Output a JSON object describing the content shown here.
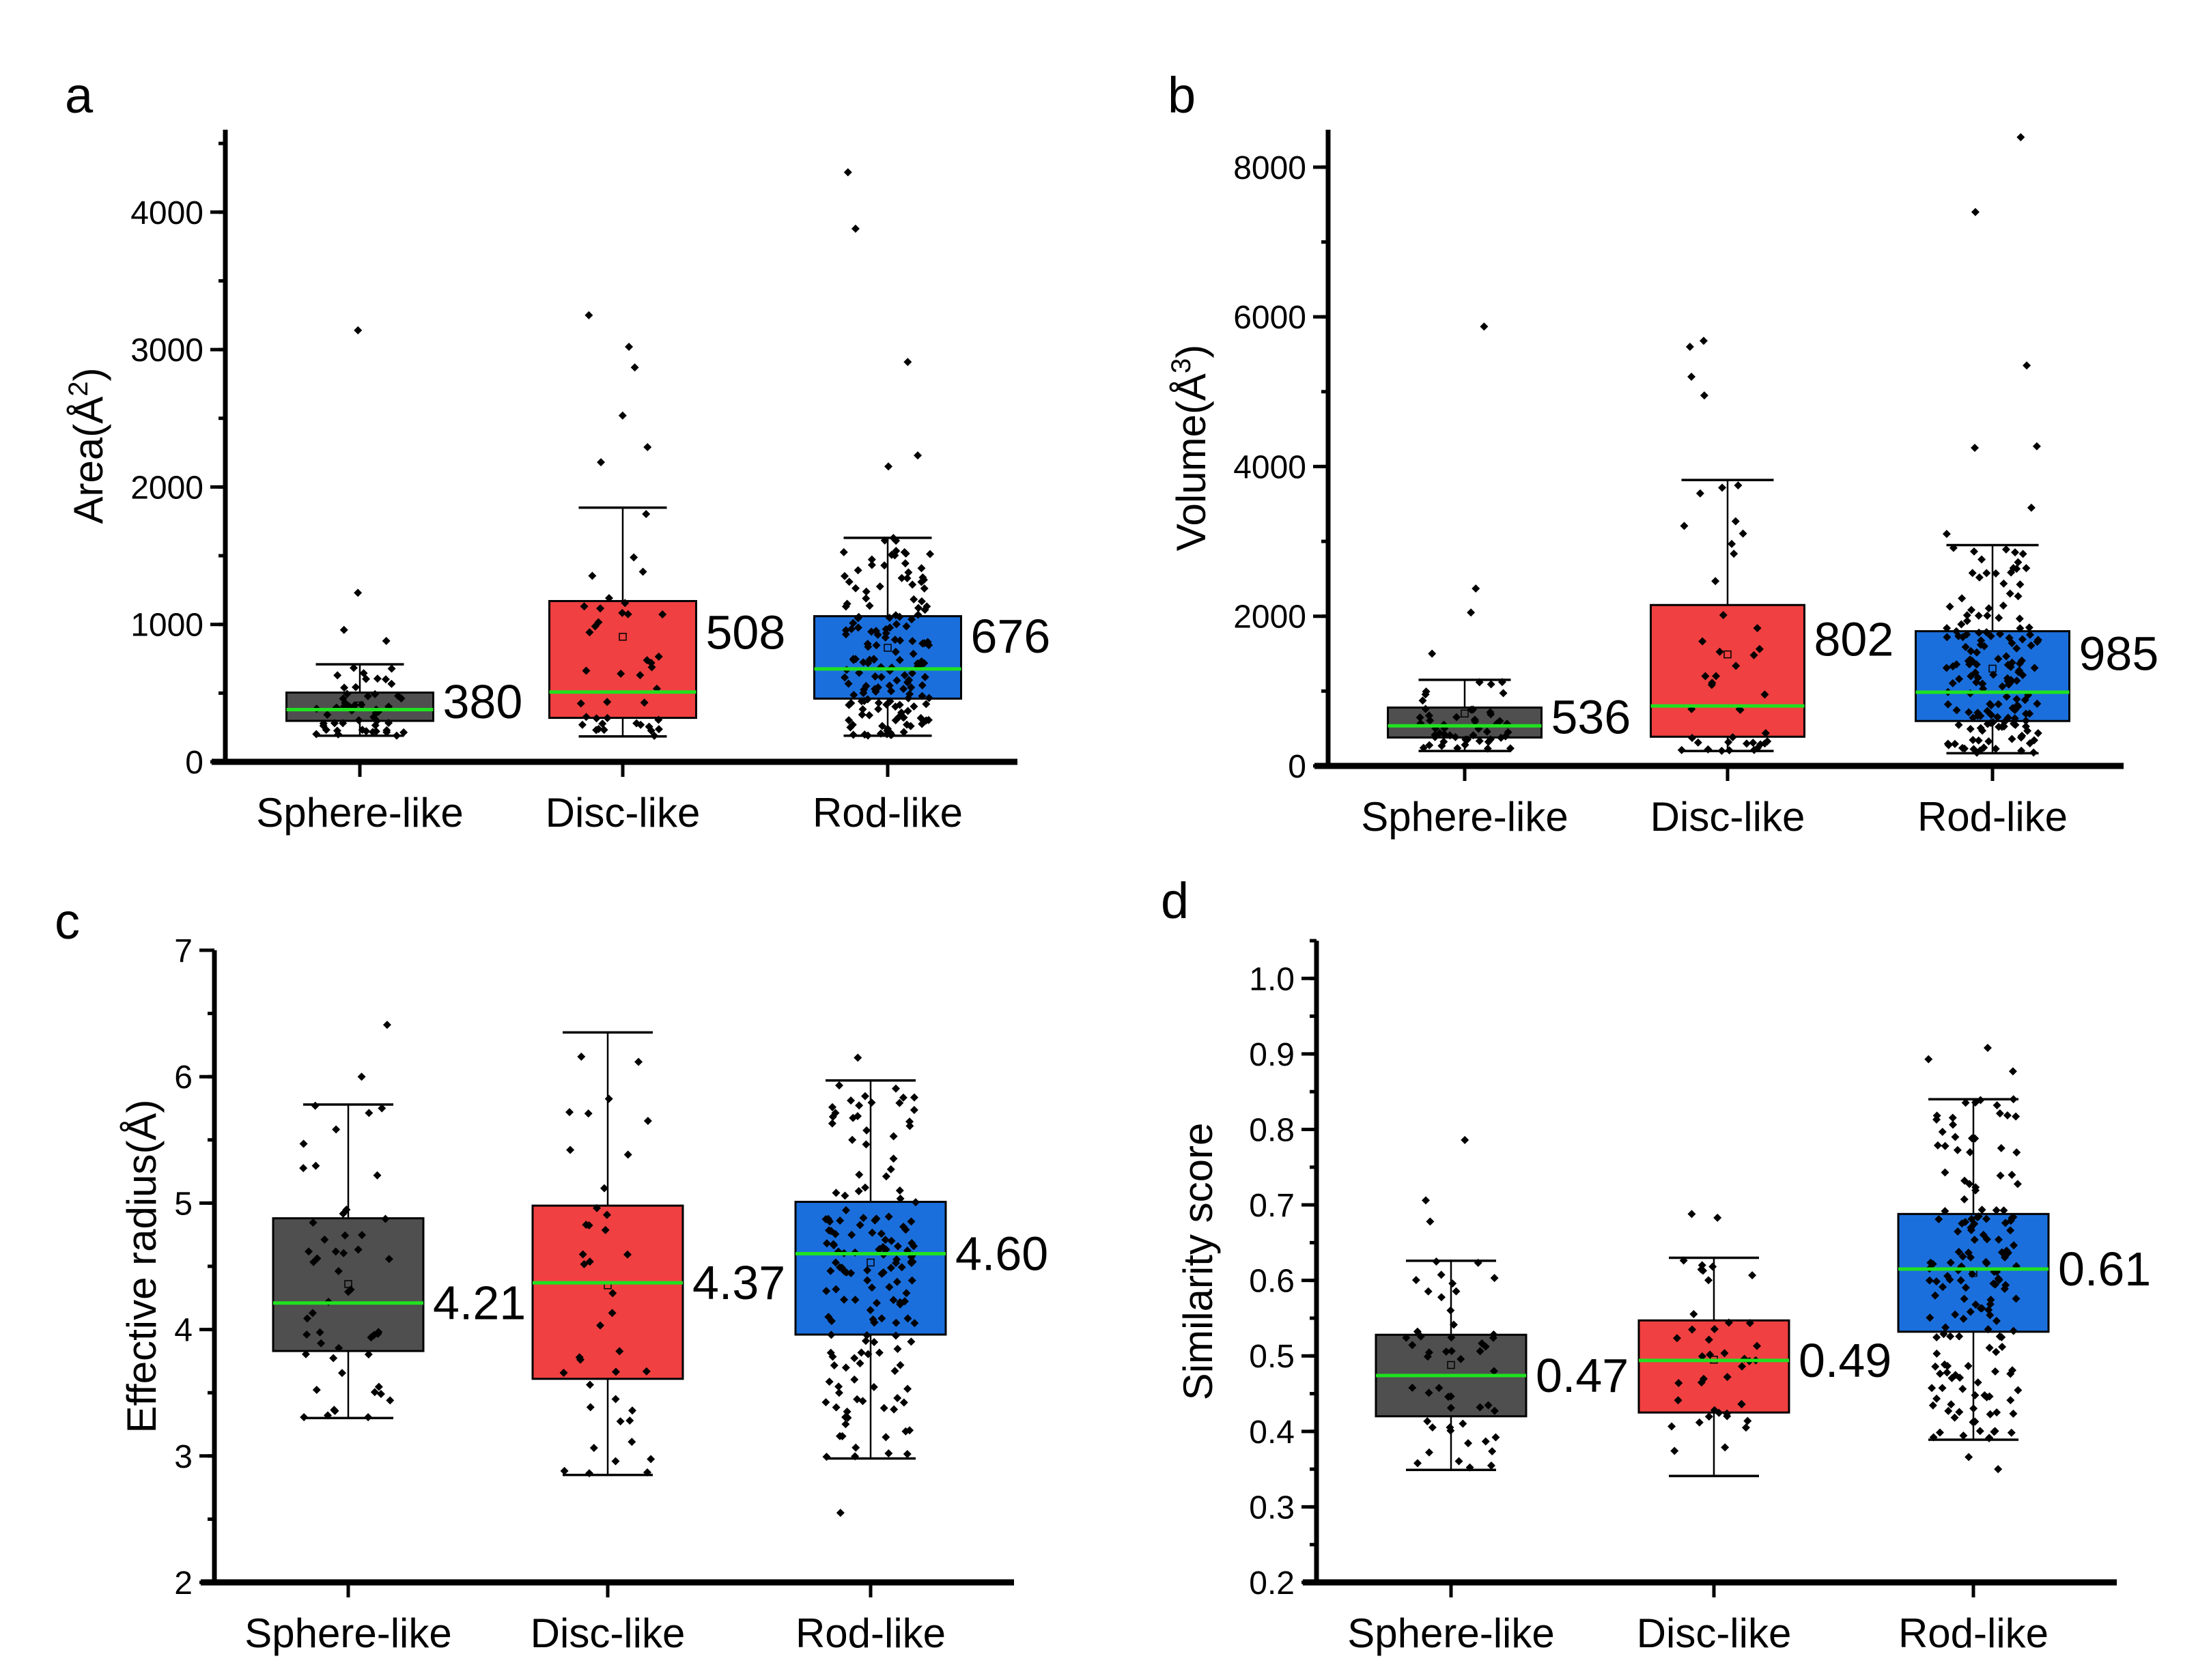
{
  "figure": {
    "colors": {
      "sphere": "#4f4f4f",
      "disc": "#f04041",
      "rod": "#1b6fdc",
      "median_line": "#1fe21f",
      "points": "#000000"
    }
  },
  "chart_data": [
    {
      "panel": "a",
      "type": "box",
      "title": "",
      "xlabel": "",
      "ylabel": "Area(Å²)",
      "ylabel_base": "Area(Å",
      "ylabel_sup": "2",
      "ylim": [
        0,
        4600
      ],
      "yticks": [
        0,
        1000,
        2000,
        3000,
        4000
      ],
      "ytick_labels": [
        "0",
        "1000",
        "2000",
        "3000",
        "4000"
      ],
      "minor_step": 500,
      "categories": [
        "Sphere-like",
        "Disc-like",
        "Rod-like"
      ],
      "series": [
        {
          "name": "Sphere-like",
          "q1": 298,
          "median": 380,
          "q3": 504,
          "whisker_low": 190,
          "whisker_high": 710,
          "mean": 410,
          "median_label": "380",
          "n_points": 50,
          "outliers": [
            880,
            960,
            1230,
            3140
          ]
        },
        {
          "name": "Disc-like",
          "q1": 320,
          "median": 508,
          "q3": 1170,
          "whisker_low": 185,
          "whisker_high": 1850,
          "mean": 910,
          "median_label": "508",
          "n_points": 40,
          "outliers": [
            2180,
            2290,
            2520,
            2870,
            3020,
            3250
          ]
        },
        {
          "name": "Rod-like",
          "q1": 460,
          "median": 676,
          "q3": 1060,
          "whisker_low": 190,
          "whisker_high": 1630,
          "mean": 830,
          "median_label": "676",
          "n_points": 160,
          "outliers": [
            2150,
            2230,
            2910,
            3880,
            4290
          ]
        }
      ]
    },
    {
      "panel": "b",
      "type": "box",
      "title": "",
      "xlabel": "",
      "ylabel": "Volume(Å³)",
      "ylabel_base": "Volume(Å",
      "ylabel_sup": "3",
      "ylim": [
        0,
        8500
      ],
      "yticks": [
        0,
        2000,
        4000,
        6000,
        8000
      ],
      "ytick_labels": [
        "0",
        "2000",
        "4000",
        "6000",
        "8000"
      ],
      "minor_step": 1000,
      "categories": [
        "Sphere-like",
        "Disc-like",
        "Rod-like"
      ],
      "series": [
        {
          "name": "Sphere-like",
          "q1": 380,
          "median": 536,
          "q3": 780,
          "whisker_low": 200,
          "whisker_high": 1150,
          "mean": 700,
          "median_label": "536",
          "n_points": 50,
          "outliers": [
            1500,
            2050,
            2370,
            5870
          ]
        },
        {
          "name": "Disc-like",
          "q1": 390,
          "median": 802,
          "q3": 2150,
          "whisker_low": 200,
          "whisker_high": 3820,
          "mean": 1490,
          "median_label": "802",
          "n_points": 40,
          "outliers": [
            4950,
            5200,
            5600,
            5680
          ]
        },
        {
          "name": "Rod-like",
          "q1": 600,
          "median": 985,
          "q3": 1800,
          "whisker_low": 170,
          "whisker_high": 2950,
          "mean": 1300,
          "median_label": "985",
          "n_points": 160,
          "outliers": [
            3100,
            3450,
            4250,
            4270,
            5350,
            7400,
            8400
          ]
        }
      ]
    },
    {
      "panel": "c",
      "type": "box",
      "title": "",
      "xlabel": "",
      "ylabel": "Effective radius(Å)",
      "ylabel_base": "Effective radius(Å)",
      "ylabel_sup": "",
      "ylim": [
        2,
        7
      ],
      "yticks": [
        2,
        3,
        4,
        5,
        6,
        7
      ],
      "ytick_labels": [
        "2",
        "3",
        "4",
        "5",
        "6",
        "7"
      ],
      "minor_step": 0.5,
      "categories": [
        "Sphere-like",
        "Disc-like",
        "Rod-like"
      ],
      "series": [
        {
          "name": "Sphere-like",
          "q1": 3.83,
          "median": 4.21,
          "q3": 4.88,
          "whisker_low": 3.3,
          "whisker_high": 5.78,
          "mean": 4.36,
          "median_label": "4.21",
          "n_points": 50,
          "outliers": [
            6.0,
            6.41
          ]
        },
        {
          "name": "Disc-like",
          "q1": 3.61,
          "median": 4.37,
          "q3": 4.98,
          "whisker_low": 2.85,
          "whisker_high": 6.35,
          "mean": 4.35,
          "median_label": "4.37",
          "n_points": 40,
          "outliers": []
        },
        {
          "name": "Rod-like",
          "q1": 3.96,
          "median": 4.6,
          "q3": 5.01,
          "whisker_low": 2.98,
          "whisker_high": 5.97,
          "mean": 4.53,
          "median_label": "4.60",
          "n_points": 160,
          "outliers": [
            2.55,
            6.15
          ]
        }
      ]
    },
    {
      "panel": "d",
      "type": "box",
      "title": "",
      "xlabel": "",
      "ylabel": "Similarity score",
      "ylabel_base": "Similarity score",
      "ylabel_sup": "",
      "ylim": [
        0.2,
        1.05
      ],
      "yticks": [
        0.2,
        0.3,
        0.4,
        0.5,
        0.6,
        0.7,
        0.8,
        0.9,
        1.0
      ],
      "ytick_labels": [
        "0.2",
        "0.3",
        "0.4",
        "0.5",
        "0.6",
        "0.7",
        "0.8",
        "0.9",
        "1.0"
      ],
      "minor_step": 0.05,
      "categories": [
        "Sphere-like",
        "Disc-like",
        "Rod-like"
      ],
      "series": [
        {
          "name": "Sphere-like",
          "q1": 0.42,
          "median": 0.474,
          "q3": 0.528,
          "whisker_low": 0.349,
          "whisker_high": 0.626,
          "mean": 0.488,
          "median_label": "0.47",
          "n_points": 50,
          "outliers": [
            0.678,
            0.706,
            0.786
          ]
        },
        {
          "name": "Disc-like",
          "q1": 0.425,
          "median": 0.494,
          "q3": 0.547,
          "whisker_low": 0.341,
          "whisker_high": 0.63,
          "mean": 0.495,
          "median_label": "0.49",
          "n_points": 40,
          "outliers": [
            0.683,
            0.688
          ]
        },
        {
          "name": "Rod-like",
          "q1": 0.532,
          "median": 0.615,
          "q3": 0.688,
          "whisker_low": 0.389,
          "whisker_high": 0.84,
          "mean": 0.61,
          "median_label": "0.61",
          "n_points": 160,
          "outliers": [
            0.35,
            0.366,
            0.877,
            0.893,
            0.908
          ]
        }
      ]
    }
  ]
}
